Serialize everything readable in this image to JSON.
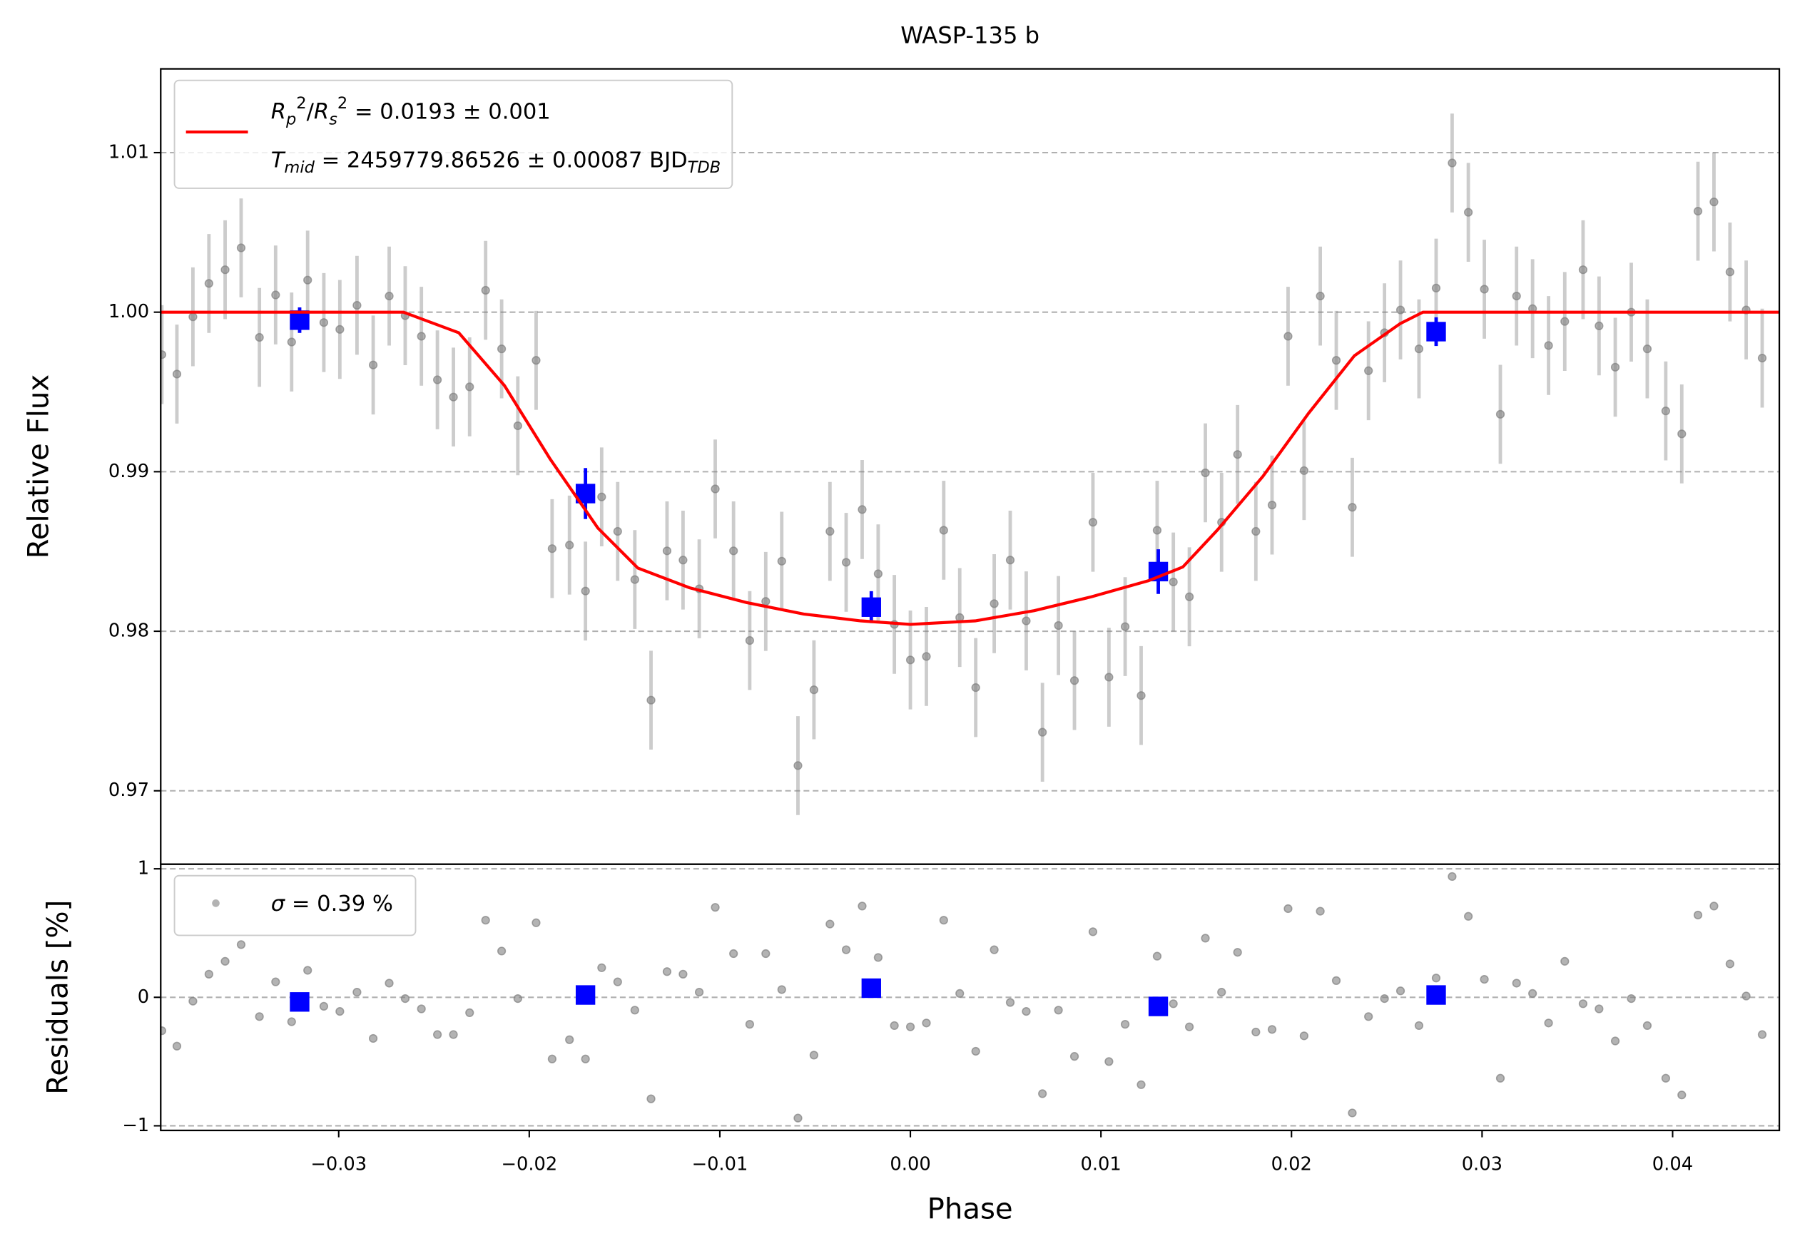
{
  "chart_data": [
    {
      "type": "errorbar",
      "title": "WASP-135 b",
      "ylabel": "Relative Flux",
      "xlim": [
        -0.03934,
        0.0456
      ],
      "ylim": [
        0.9654,
        1.01525
      ],
      "yticks": [
        0.97,
        0.98,
        0.99,
        {
          "value": 1,
          "label": "1.00"
        },
        1.01
      ],
      "grid": true,
      "legend_loc": "upper left",
      "series": [
        {
          "kind": "points",
          "color": "#808080",
          "x": [
            -0.03928,
            -0.03849,
            -0.03765,
            -0.03681,
            -0.03596,
            -0.03512,
            -0.03416,
            -0.03331,
            -0.03247,
            -0.03163,
            -0.03078,
            -0.02994,
            -0.02904,
            -0.02819,
            -0.02735,
            -0.02651,
            -0.02566,
            -0.02482,
            -0.02398,
            -0.02313,
            -0.02229,
            -0.02145,
            -0.0206,
            -0.01964,
            -0.0188,
            -0.01789,
            -0.01705,
            -0.0162,
            -0.01536,
            -0.01446,
            -0.01361,
            -0.01277,
            -0.01193,
            -0.01108,
            -0.01024,
            -0.00928,
            -0.00843,
            -0.00759,
            -0.00675,
            -0.0059,
            -0.00506,
            -0.00422,
            -0.00337,
            -0.00253,
            -0.00169,
            -0.00084,
            0,
            0.00084,
            0.00175,
            0.00259,
            0.00343,
            0.0044,
            0.00524,
            0.00608,
            0.00693,
            0.00777,
            0.00861,
            0.00958,
            0.01042,
            0.01127,
            0.01211,
            0.01295,
            0.0138,
            0.01464,
            0.01548,
            0.01633,
            0.01717,
            0.01813,
            0.01898,
            0.01982,
            0.02066,
            0.02151,
            0.02235,
            0.02319,
            0.02404,
            0.02488,
            0.02572,
            0.02669,
            0.02759,
            0.02843,
            0.02928,
            0.03012,
            0.03096,
            0.03181,
            0.03265,
            0.03349,
            0.03434,
            0.0353,
            0.03614,
            0.03699,
            0.03783,
            0.03867,
            0.03964,
            0.04048,
            0.04133,
            0.04217,
            0.04301,
            0.04386,
            0.0447
          ],
          "values": [
            0.99734,
            0.99612,
            0.99971,
            1.0018,
            1.00266,
            1.00403,
            0.99842,
            1.00108,
            0.99813,
            1.00201,
            0.99935,
            0.99892,
            1.00043,
            0.99669,
            1.00101,
            0.99978,
            0.99849,
            0.99576,
            0.99468,
            0.99532,
            1.00137,
            0.9977,
            0.99288,
            0.99698,
            0.98518,
            0.9854,
            0.98252,
            0.98842,
            0.98626,
            0.98324,
            0.97568,
            0.98504,
            0.98446,
            0.98266,
            0.98892,
            0.98504,
            0.97942,
            0.98187,
            0.98439,
            0.97158,
            0.97633,
            0.98626,
            0.98432,
            0.98763,
            0.9836,
            0.98043,
            0.9782,
            0.97842,
            0.98633,
            0.98086,
            0.97647,
            0.98173,
            0.98446,
            0.98065,
            0.97367,
            0.98036,
            0.97691,
            0.98683,
            0.97712,
            0.98029,
            0.97597,
            0.98633,
            0.98309,
            0.98216,
            0.98993,
            0.98683,
            0.99108,
            0.98626,
            0.98791,
            0.99849,
            0.99007,
            1.00101,
            0.99698,
            0.98777,
            0.99633,
            0.99871,
            1.00014,
            0.9977,
            1.00151,
            1.00935,
            1.00626,
            1.00144,
            0.9936,
            1.00101,
            1.00022,
            0.99791,
            0.99942,
            1.00266,
            0.99914,
            0.99655,
            1,
            0.9977,
            0.99381,
            0.99237,
            1.00633,
            1.00691,
            1.00252,
            1.00014,
            0.99712
          ],
          "yerr": 0.0031
        },
        {
          "kind": "binned",
          "color": "#0000ff",
          "x": [
            -0.03205,
            -0.01705,
            -0.00205,
            0.01301,
            0.02759
          ],
          "values": [
            0.9995,
            0.98863,
            0.98151,
            0.98374,
            0.99878
          ],
          "yerr": [
            0.0008,
            0.0016,
            0.001,
            0.0014,
            0.0009
          ]
        },
        {
          "kind": "line",
          "color": "#ff0000",
          "name_lines": [
            [
              {
                "text": "R",
                "italic": true
              },
              {
                "text": "p",
                "italic": true,
                "shift": "sub"
              },
              {
                "text": "2",
                "shift": "sup"
              },
              {
                "text": "/"
              },
              {
                "text": "R",
                "italic": true
              },
              {
                "text": "s",
                "italic": true,
                "shift": "sub"
              },
              {
                "text": "2",
                "shift": "sup"
              },
              {
                "text": " = 0.0193 ± 0.001"
              }
            ],
            [
              {
                "text": "T",
                "italic": true
              },
              {
                "text": "mid",
                "italic": true,
                "shift": "sub"
              },
              {
                "text": " = 2459779.86526 ± 0.00087 BJD"
              },
              {
                "text": "TDB",
                "italic": true,
                "shift": "sub"
              }
            ]
          ],
          "x": [
            -0.0394,
            -0.0266,
            -0.0237,
            -0.0213,
            -0.0189,
            -0.0164,
            -0.0143,
            -0.0116,
            -0.0086,
            -0.0056,
            -0.0026,
            0,
            0.0034,
            0.0065,
            0.0095,
            0.0125,
            0.0143,
            0.0161,
            0.0185,
            0.0209,
            0.0233,
            0.0257,
            0.0269,
            0.0456
          ],
          "values": [
            1,
            1,
            0.99871,
            0.9954,
            0.99079,
            0.98647,
            0.98396,
            0.98273,
            0.9818,
            0.98108,
            0.98065,
            0.98043,
            0.98065,
            0.98129,
            0.98216,
            0.98317,
            0.98403,
            0.98633,
            0.98971,
            0.99367,
            0.99727,
            0.99928,
            1,
            1
          ]
        }
      ]
    },
    {
      "type": "scatter",
      "ylabel": "Residuals [%]",
      "xlabel": "Phase",
      "xlim": [
        -0.03934,
        0.0456
      ],
      "ylim": [
        -1.036,
        1.036
      ],
      "yticks": [
        {
          "value": -1,
          "label": "−1"
        },
        0,
        1
      ],
      "xticks": [
        {
          "value": -0.03,
          "label": "−0.03"
        },
        {
          "value": -0.02,
          "label": "−0.02"
        },
        {
          "value": -0.01,
          "label": "−0.01"
        },
        {
          "value": 0,
          "label": "0.00"
        },
        0.01,
        0.02,
        0.03,
        0.04
      ],
      "grid": true,
      "legend_loc": "upper left",
      "series": [
        {
          "kind": "points",
          "color": "#808080",
          "name_lines": [
            [
              {
                "text": "σ",
                "italic": true
              },
              {
                "text": " = 0.39 %"
              }
            ]
          ],
          "x": [
            -0.03928,
            -0.03849,
            -0.03765,
            -0.03681,
            -0.03596,
            -0.03512,
            -0.03416,
            -0.03331,
            -0.03247,
            -0.03163,
            -0.03078,
            -0.02994,
            -0.02904,
            -0.02819,
            -0.02735,
            -0.02651,
            -0.02566,
            -0.02482,
            -0.02398,
            -0.02313,
            -0.02229,
            -0.02145,
            -0.0206,
            -0.01964,
            -0.0188,
            -0.01789,
            -0.01705,
            -0.0162,
            -0.01536,
            -0.01446,
            -0.01361,
            -0.01277,
            -0.01193,
            -0.01108,
            -0.01024,
            -0.00928,
            -0.00843,
            -0.00759,
            -0.00675,
            -0.0059,
            -0.00506,
            -0.00422,
            -0.00337,
            -0.00253,
            -0.00169,
            -0.00084,
            0,
            0.00084,
            0.00175,
            0.00259,
            0.00343,
            0.0044,
            0.00524,
            0.00608,
            0.00693,
            0.00777,
            0.00861,
            0.00958,
            0.01042,
            0.01127,
            0.01211,
            0.01295,
            0.0138,
            0.01464,
            0.01548,
            0.01633,
            0.01717,
            0.01813,
            0.01898,
            0.01982,
            0.02066,
            0.02151,
            0.02235,
            0.02319,
            0.02404,
            0.02488,
            0.02572,
            0.02669,
            0.02759,
            0.02843,
            0.02928,
            0.03012,
            0.03096,
            0.03181,
            0.03265,
            0.03349,
            0.03434,
            0.0353,
            0.03614,
            0.03699,
            0.03783,
            0.03867,
            0.03964,
            0.04048,
            0.04133,
            0.04217,
            0.04301,
            0.04386,
            0.0447
          ],
          "values": [
            -0.26,
            -0.38,
            -0.03,
            0.18,
            0.28,
            0.41,
            -0.15,
            0.12,
            -0.19,
            0.21,
            -0.07,
            -0.11,
            0.04,
            -0.32,
            0.11,
            -0.01,
            -0.09,
            -0.29,
            -0.29,
            -0.12,
            0.6,
            0.36,
            -0.01,
            0.58,
            -0.48,
            -0.33,
            -0.48,
            0.23,
            0.12,
            -0.1,
            -0.79,
            0.2,
            0.18,
            0.04,
            0.7,
            0.34,
            -0.21,
            0.34,
            0.06,
            -0.94,
            -0.45,
            0.57,
            0.37,
            0.71,
            0.31,
            -0.22,
            -0.23,
            -0.2,
            0.6,
            0.03,
            -0.42,
            0.37,
            -0.04,
            -0.11,
            -0.75,
            -0.1,
            -0.46,
            0.51,
            -0.5,
            -0.21,
            -0.68,
            0.32,
            -0.05,
            -0.23,
            0.46,
            0.04,
            0.35,
            -0.27,
            -0.25,
            0.69,
            -0.3,
            0.67,
            0.13,
            -0.9,
            -0.15,
            -0.01,
            0.05,
            -0.22,
            0.15,
            0.94,
            0.63,
            0.14,
            -0.63,
            0.11,
            0.03,
            -0.2,
            0.28,
            -0.05,
            -0.09,
            -0.34,
            -0.01,
            -0.22,
            -0.63,
            -0.76,
            0.64,
            0.71,
            0.26,
            0.01,
            -0.29
          ]
        },
        {
          "kind": "binned",
          "color": "#0000ff",
          "x": [
            -0.03205,
            -0.01705,
            -0.00205,
            0.01301,
            0.02759
          ],
          "values": [
            -0.036,
            0.018,
            0.071,
            -0.071,
            0.018
          ]
        }
      ]
    }
  ]
}
